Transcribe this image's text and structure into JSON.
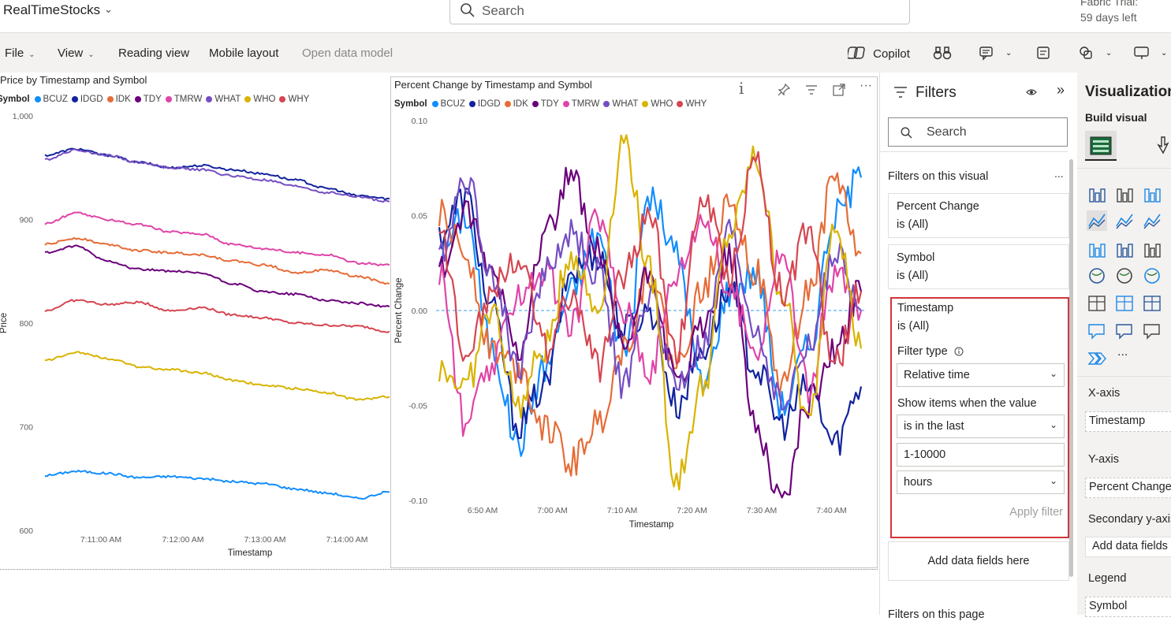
{
  "header": {
    "app_title": "RealTimeStocks",
    "search_placeholder": "Search",
    "trial_line1": "Fabric Trial:",
    "trial_line2": "59 days left"
  },
  "toolbar": {
    "file": "File",
    "view": "View",
    "reading_view": "Reading view",
    "mobile_layout": "Mobile layout",
    "open_data_model": "Open data model",
    "copilot": "Copilot"
  },
  "series_colors": {
    "BCUZ": "#118dff",
    "IDGD": "#12239e",
    "IDK": "#e66c37",
    "TDY": "#6b007b",
    "TMRW": "#e044a7",
    "WHAT": "#744ec2",
    "WHO": "#d9b300",
    "WHY": "#d64550"
  },
  "chart_data": [
    {
      "type": "line",
      "title": "Price by Timestamp and Symbol",
      "legend_title": "Symbol",
      "xlabel": "Timestamp",
      "ylabel": "Price",
      "x_ticks": [
        "7:11:00 AM",
        "7:12:00 AM",
        "7:13:00 AM",
        "7:14:00 AM"
      ],
      "y_ticks": [
        "1,000",
        "900",
        "800",
        "700",
        "600"
      ],
      "ylim": [
        600,
        1000
      ],
      "series": [
        {
          "name": "BCUZ",
          "values": [
            653,
            657,
            655,
            651,
            652,
            650,
            647,
            645,
            640,
            636,
            631,
            637
          ]
        },
        {
          "name": "IDGD",
          "values": [
            962,
            968,
            962,
            955,
            950,
            952,
            948,
            944,
            938,
            930,
            923,
            920
          ]
        },
        {
          "name": "IDK",
          "values": [
            876,
            882,
            876,
            870,
            868,
            866,
            860,
            856,
            849,
            851,
            845,
            838
          ]
        },
        {
          "name": "TDY",
          "values": [
            868,
            874,
            860,
            852,
            850,
            848,
            838,
            830,
            828,
            822,
            819,
            816
          ]
        },
        {
          "name": "TMRW",
          "values": [
            896,
            906,
            900,
            895,
            888,
            886,
            876,
            872,
            868,
            866,
            858,
            856
          ]
        },
        {
          "name": "WHAT",
          "values": [
            958,
            967,
            962,
            955,
            950,
            948,
            942,
            938,
            932,
            926,
            922,
            917
          ]
        },
        {
          "name": "WHY",
          "values": [
            812,
            822,
            818,
            820,
            812,
            815,
            808,
            805,
            800,
            798,
            797,
            792
          ]
        },
        {
          "name": "WHO",
          "values": [
            764,
            772,
            766,
            758,
            755,
            752,
            745,
            740,
            737,
            733,
            726,
            729
          ]
        }
      ]
    },
    {
      "type": "line",
      "title": "Percent Change by Timestamp and Symbol",
      "legend_title": "Symbol",
      "xlabel": "Timestamp",
      "ylabel": "Percent Change",
      "x_ticks": [
        "6:50 AM",
        "7:00 AM",
        "7:10 AM",
        "7:20 AM",
        "7:30 AM",
        "7:40 AM"
      ],
      "y_ticks": [
        "0.10",
        "0.05",
        "0.00",
        "-0.05",
        "-0.10"
      ],
      "ylim": [
        -0.1,
        0.1
      ],
      "reference_line": 0,
      "series": [
        {
          "name": "BCUZ",
          "values": [
            0.03,
            0.05,
            -0.02,
            -0.07,
            -0.03,
            0.01,
            0.04,
            -0.02,
            0.06,
            0.03,
            -0.04,
            0.01,
            0.02,
            -0.05,
            -0.02,
            0.05,
            0.07
          ]
        },
        {
          "name": "IDGD",
          "values": [
            0.04,
            0.06,
            0.0,
            -0.06,
            -0.04,
            0.02,
            0.03,
            -0.01,
            0.0,
            -0.05,
            -0.02,
            0.01,
            -0.03,
            -0.06,
            -0.04,
            -0.07,
            -0.04
          ]
        },
        {
          "name": "IDK",
          "values": [
            0.05,
            0.03,
            -0.02,
            -0.03,
            -0.06,
            -0.08,
            -0.06,
            -0.02,
            0.02,
            -0.03,
            0.01,
            0.06,
            0.02,
            -0.04,
            0.01,
            0.07,
            0.03
          ]
        },
        {
          "name": "TDY",
          "values": [
            0.02,
            0.05,
            0.02,
            -0.02,
            0.04,
            0.07,
            0.03,
            -0.02,
            0.02,
            -0.04,
            -0.01,
            0.03,
            -0.06,
            -0.1,
            -0.05,
            -0.02,
            0.01
          ]
        },
        {
          "name": "TMRW",
          "values": [
            0.02,
            -0.06,
            -0.03,
            0.01,
            0.02,
            -0.01,
            0.05,
            0.0,
            -0.03,
            0.02,
            0.05,
            0.01,
            -0.02,
            0.03,
            -0.04,
            0.02,
            0.0
          ]
        },
        {
          "name": "WHAT",
          "values": [
            0.03,
            0.07,
            0.02,
            -0.03,
            0.02,
            0.04,
            0.02,
            -0.04,
            0.01,
            -0.04,
            -0.02,
            0.04,
            -0.01,
            -0.05,
            -0.02,
            0.03,
            0.0
          ]
        },
        {
          "name": "WHO",
          "values": [
            -0.03,
            -0.04,
            0.0,
            -0.05,
            -0.02,
            0.03,
            0.0,
            0.09,
            0.02,
            -0.09,
            -0.04,
            0.04,
            0.08,
            0.01,
            -0.06,
            0.05,
            -0.02
          ]
        },
        {
          "name": "WHY",
          "values": [
            0.04,
            -0.02,
            0.01,
            0.03,
            -0.02,
            0.01,
            -0.03,
            0.02,
            0.05,
            -0.02,
            0.06,
            0.02,
            0.08,
            0.01,
            0.04,
            -0.03,
            0.01
          ]
        }
      ]
    }
  ],
  "filters": {
    "title": "Filters",
    "search_placeholder": "Search",
    "section_visual": "Filters on this visual",
    "more": "...",
    "cards": [
      {
        "field": "Percent Change",
        "state": "is (All)"
      },
      {
        "field": "Symbol",
        "state": "is (All)"
      }
    ],
    "timestamp": {
      "field": "Timestamp",
      "state": "is (All)",
      "filter_type_label": "Filter type",
      "filter_type_value": "Relative time",
      "show_items_label": "Show items when the value",
      "condition_value": "is in the last",
      "amount_value": "1-10000",
      "unit_value": "hours",
      "apply_label": "Apply filter"
    },
    "add_fields": "Add data fields here",
    "section_page": "Filters on this page"
  },
  "visualizations": {
    "title": "Visualizations",
    "build_visual": "Build visual",
    "more_icon": "...",
    "xaxis_label": "X-axis",
    "xaxis_value": "Timestamp",
    "yaxis_label": "Y-axis",
    "yaxis_value": "Percent Change",
    "secondary_label": "Secondary y-axis",
    "secondary_value": "Add data fields here",
    "legend_label": "Legend",
    "legend_value": "Symbol"
  }
}
